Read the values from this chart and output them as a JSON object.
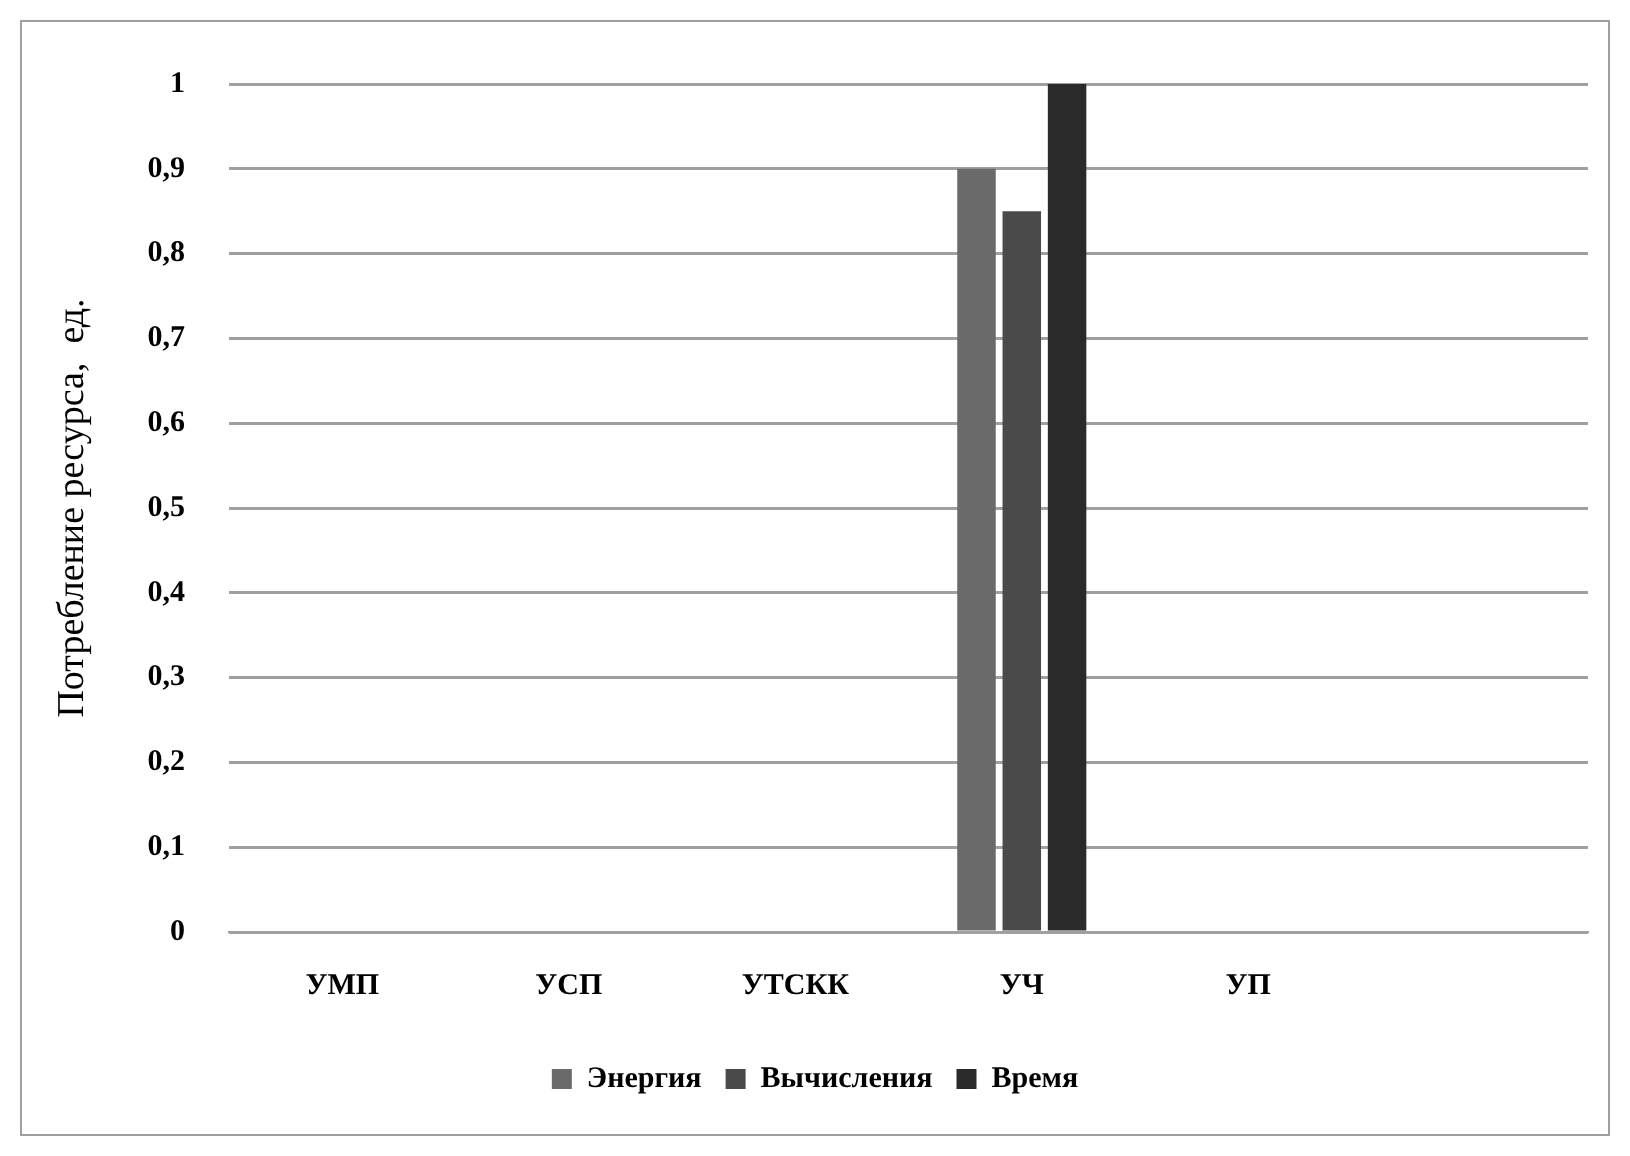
{
  "chart_data": {
    "type": "bar",
    "ylabel": "Потребление ресурса,  ед.",
    "categories": [
      "УМП",
      "УСП",
      "УТСКК",
      "УЧ",
      "УП",
      null
    ],
    "series": [
      {
        "name": "Энергия",
        "color": "#6a6a6a",
        "values": [
          0,
          0,
          0,
          0.9,
          0,
          0
        ]
      },
      {
        "name": "Вычисления",
        "color": "#4a4a4a",
        "values": [
          0,
          0,
          0,
          0.85,
          0,
          0
        ]
      },
      {
        "name": "Время",
        "color": "#2a2a2a",
        "values": [
          0,
          0,
          0,
          1,
          0,
          0
        ]
      }
    ],
    "ylim": [
      0,
      1
    ],
    "yticks": [
      0,
      {
        "value": 0.1,
        "label": "0,1"
      },
      {
        "value": 0.2,
        "label": "0,2"
      },
      {
        "value": 0.3,
        "label": "0,3"
      },
      {
        "value": 0.4,
        "label": "0,4"
      },
      {
        "value": 0.5,
        "label": "0,5"
      },
      {
        "value": 0.6,
        "label": "0,6"
      },
      {
        "value": 0.7,
        "label": "0,7"
      },
      {
        "value": 0.8,
        "label": "0,8"
      },
      {
        "value": 0.9,
        "label": "0,9"
      },
      1
    ],
    "grid": "y",
    "legend": "bottom"
  }
}
